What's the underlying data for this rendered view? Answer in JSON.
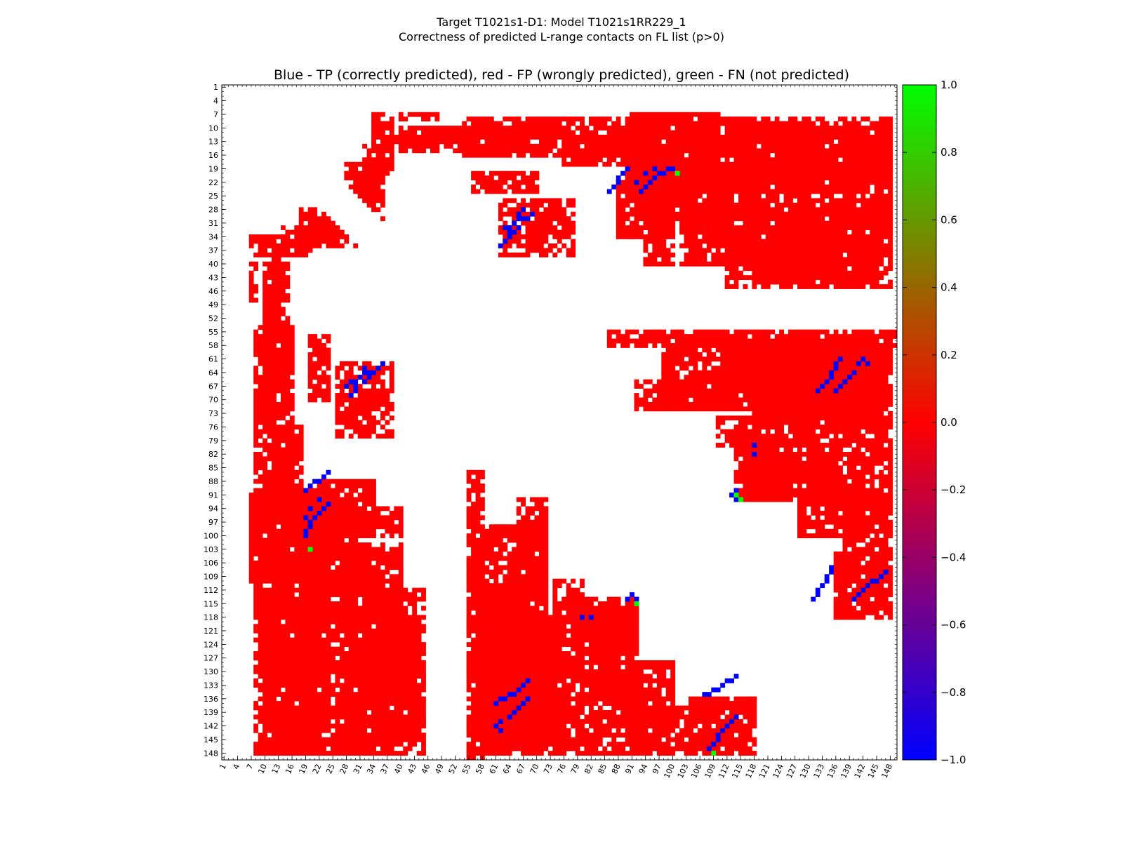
{
  "chart_data": {
    "type": "heatmap",
    "title": "Target T1021s1-D1: Model T1021s1RR229_1",
    "title_line2": "Correctness of predicted L-range contacts on FL list (p>0)",
    "subtitle": "Blue - TP (correctly predicted), red - FP (wrongly predicted), green - FN (not predicted)",
    "axis_range": [
      1,
      149
    ],
    "x_tick_labels": [
      "1",
      "4",
      "7",
      "10",
      "13",
      "16",
      "19",
      "22",
      "25",
      "28",
      "31",
      "34",
      "37",
      "40",
      "43",
      "46",
      "49",
      "52",
      "55",
      "58",
      "61",
      "64",
      "67",
      "70",
      "73",
      "76",
      "79",
      "82",
      "85",
      "88",
      "91",
      "94",
      "97",
      "100",
      "103",
      "106",
      "109",
      "112",
      "115",
      "118",
      "121",
      "124",
      "127",
      "130",
      "133",
      "136",
      "139",
      "142",
      "145",
      "148"
    ],
    "y_tick_labels": [
      "1",
      "4",
      "7",
      "10",
      "13",
      "16",
      "19",
      "22",
      "25",
      "28",
      "31",
      "34",
      "37",
      "40",
      "43",
      "46",
      "49",
      "52",
      "55",
      "58",
      "61",
      "64",
      "67",
      "70",
      "73",
      "76",
      "79",
      "82",
      "85",
      "88",
      "91",
      "94",
      "97",
      "100",
      "103",
      "106",
      "109",
      "112",
      "115",
      "118",
      "121",
      "124",
      "127",
      "130",
      "133",
      "136",
      "139",
      "142",
      "145",
      "148"
    ],
    "colorbar": {
      "range": [
        -1.0,
        1.0
      ],
      "tick_labels": [
        "1.0",
        "0.8",
        "0.6",
        "0.4",
        "0.2",
        "0.0",
        "−0.2",
        "−0.4",
        "−0.6",
        "−0.8",
        "−1.0"
      ],
      "colors": [
        "#0000ff",
        "#ff0000",
        "#00ff00"
      ]
    },
    "legend": {
      "TP": "#0000ff",
      "FP": "#ff0000",
      "FN": "#00ff00"
    },
    "fp_regions": [
      [
        36,
        48,
        12,
        14
      ],
      [
        40,
        48,
        7,
        8
      ],
      [
        34,
        38,
        7,
        20
      ],
      [
        32,
        36,
        14,
        25
      ],
      [
        28,
        34,
        18,
        28
      ],
      [
        26,
        30,
        30,
        36
      ],
      [
        10,
        15,
        40,
        62
      ],
      [
        10,
        14,
        62,
        78
      ],
      [
        12,
        18,
        76,
        96
      ],
      [
        10,
        24,
        92,
        104
      ],
      [
        18,
        24,
        100,
        118
      ],
      [
        10,
        20,
        112,
        148
      ],
      [
        20,
        24,
        96,
        148
      ],
      [
        28,
        40,
        102,
        132
      ],
      [
        28,
        34,
        130,
        148
      ],
      [
        34,
        44,
        118,
        144
      ],
      [
        22,
        34,
        88,
        100
      ],
      [
        56,
        72,
        98,
        148
      ],
      [
        60,
        76,
        118,
        144
      ],
      [
        74,
        80,
        110,
        148
      ],
      [
        80,
        92,
        116,
        148
      ],
      [
        92,
        112,
        138,
        148
      ],
      [
        54,
        102,
        8,
        16
      ],
      [
        62,
        78,
        26,
        38
      ],
      [
        56,
        70,
        20,
        24
      ],
      [
        92,
        100,
        18,
        30
      ],
      [
        94,
        100,
        28,
        40
      ],
      [
        90,
        110,
        7,
        30
      ],
      [
        104,
        148,
        8,
        24
      ],
      [
        108,
        148,
        25,
        35
      ],
      [
        112,
        148,
        35,
        45
      ],
      [
        86,
        150,
        55,
        58
      ],
      [
        112,
        146,
        58,
        68
      ],
      [
        92,
        106,
        66,
        72
      ],
      [
        118,
        148,
        68,
        76
      ],
      [
        114,
        124,
        78,
        92
      ],
      [
        116,
        136,
        82,
        88
      ],
      [
        134,
        146,
        90,
        94
      ],
      [
        136,
        148,
        104,
        118
      ],
      [
        128,
        148,
        90,
        100
      ],
      [
        106,
        124,
        64,
        72
      ]
    ],
    "tp_points": [
      [
        19,
        90
      ],
      [
        20,
        89
      ],
      [
        21,
        88
      ],
      [
        22,
        88
      ],
      [
        23,
        87
      ],
      [
        24,
        86
      ],
      [
        22,
        92
      ],
      [
        20,
        94
      ],
      [
        19,
        96
      ],
      [
        28,
        67
      ],
      [
        29,
        66
      ],
      [
        30,
        66
      ],
      [
        31,
        65
      ],
      [
        32,
        64
      ],
      [
        33,
        64
      ],
      [
        34,
        64
      ],
      [
        35,
        63
      ],
      [
        36,
        62
      ],
      [
        63,
        32
      ],
      [
        64,
        33
      ],
      [
        65,
        33
      ],
      [
        66,
        32
      ],
      [
        67,
        30
      ],
      [
        68,
        30
      ],
      [
        69,
        29
      ],
      [
        93,
        24
      ],
      [
        94,
        23
      ],
      [
        95,
        22
      ],
      [
        96,
        21
      ],
      [
        97,
        20
      ],
      [
        98,
        20
      ],
      [
        99,
        19
      ],
      [
        100,
        19
      ],
      [
        107,
        135
      ],
      [
        108,
        135
      ],
      [
        109,
        134
      ],
      [
        110,
        134
      ],
      [
        111,
        133
      ],
      [
        112,
        132
      ],
      [
        113,
        132
      ],
      [
        114,
        131
      ],
      [
        61,
        137
      ],
      [
        62,
        136
      ],
      [
        63,
        136
      ],
      [
        64,
        135
      ],
      [
        65,
        135
      ],
      [
        66,
        134
      ],
      [
        67,
        133
      ],
      [
        68,
        132
      ],
      [
        136,
        68
      ],
      [
        137,
        67
      ],
      [
        138,
        66
      ],
      [
        139,
        65
      ],
      [
        140,
        64
      ],
      [
        141,
        62
      ],
      [
        142,
        61
      ],
      [
        143,
        62
      ],
      [
        140,
        114
      ],
      [
        141,
        113
      ],
      [
        142,
        112
      ],
      [
        143,
        111
      ],
      [
        144,
        110
      ],
      [
        145,
        110
      ],
      [
        146,
        109
      ],
      [
        147,
        108
      ],
      [
        91,
        113
      ],
      [
        92,
        114
      ],
      [
        114,
        90
      ],
      [
        118,
        80
      ],
      [
        118,
        82
      ]
    ],
    "fn_points": [
      [
        20,
        101
      ],
      [
        92,
        115
      ],
      [
        103,
        20
      ],
      [
        115,
        92
      ],
      [
        148,
        109
      ],
      [
        91,
        114
      ]
    ]
  }
}
